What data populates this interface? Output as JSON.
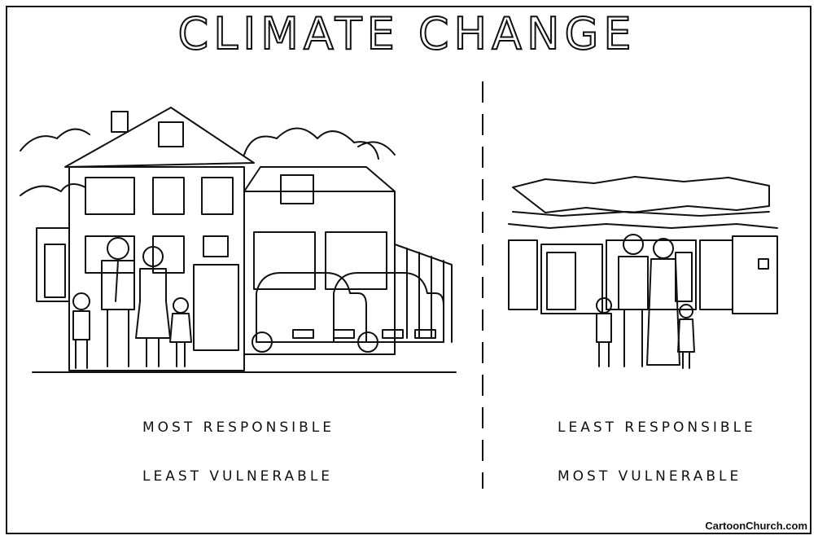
{
  "title": "CLIMATE CHANGE",
  "left": {
    "line1": "MOST RESPONSIBLE",
    "line2": "LEAST VULNERABLE"
  },
  "right": {
    "line1": "LEAST RESPONSIBLE",
    "line2": "MOST VULNERABLE"
  },
  "credit": "CartoonChurch.com"
}
